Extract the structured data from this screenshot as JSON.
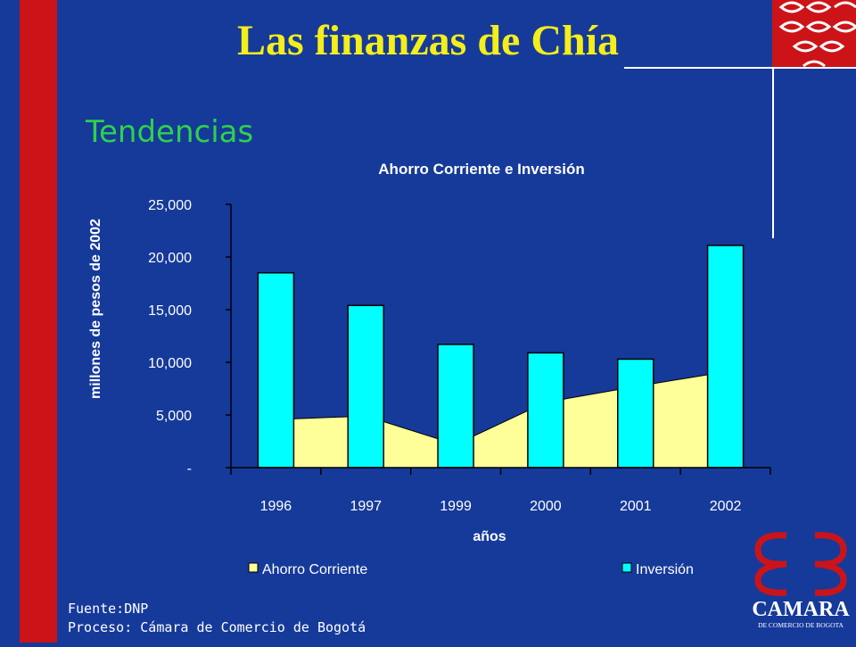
{
  "header": {
    "title": "Las finanzas de Chía",
    "subtitle": "Tendencias"
  },
  "colors": {
    "background": "#163a9a",
    "side_bar": "#cc1418",
    "title": "#f4ee1a",
    "subtitle": "#2ed24a",
    "ahorro_fill": "#ffff99",
    "inversion_fill": "#00ffff"
  },
  "chart_data": {
    "type": "bar",
    "title": "Ahorro Corriente e Inversión",
    "xlabel": "años",
    "ylabel": "millones de pesos de  2002",
    "categories": [
      "1996",
      "1997",
      "1999",
      "2000",
      "2001",
      "2002"
    ],
    "ylim": [
      0,
      25000
    ],
    "yticks": [
      "-",
      "5,000",
      "10,000",
      "15,000",
      "20,000",
      "25,000"
    ],
    "series": [
      {
        "name": "Ahorro Corriente",
        "type": "area",
        "values": [
          4500,
          4900,
          2200,
          6200,
          7700,
          9100
        ]
      },
      {
        "name": "Inversión",
        "type": "bar",
        "values": [
          18500,
          15400,
          11700,
          10900,
          10300,
          21100
        ]
      }
    ],
    "legend_position": "bottom",
    "grid": false
  },
  "footer": {
    "fuente": "Fuente:DNP",
    "proceso": "Proceso: Cámara de Comercio de Bogotá"
  },
  "logo": {
    "name": "CAMARA",
    "tagline": "DE COMERCIO DE BOGOTA"
  }
}
